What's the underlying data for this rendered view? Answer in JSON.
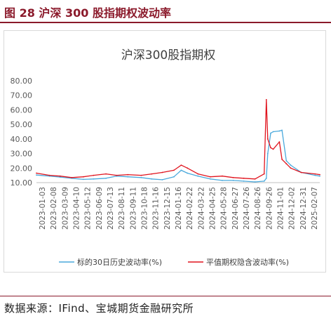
{
  "figure": {
    "title": "图 28 沪深 300 股指期权波动率",
    "source": "数据来源：IFind、宝城期货金融研究所",
    "accent_color": "#8b1a2b"
  },
  "chart_data": {
    "type": "line",
    "title": "沪深300股指期权",
    "xlabel": "",
    "ylabel": "",
    "ylim": [
      10,
      80
    ],
    "yticks": [
      "10.00",
      "20.00",
      "30.00",
      "40.00",
      "50.00",
      "60.00",
      "70.00",
      "80.00"
    ],
    "xticks": [
      "2023-01-03",
      "2023-02-08",
      "2023-03-09",
      "2023-04-10",
      "2023-05-12",
      "2023-06-09",
      "2023-07-13",
      "2023-08-11",
      "2023-09-11",
      "2023-10-18",
      "2023-11-16",
      "2023-12-15",
      "2024-01-16",
      "2024-02-22",
      "2024-03-22",
      "2024-04-25",
      "2024-05-28",
      "2024-06-27",
      "2024-07-26",
      "2024-08-26",
      "2024-09-26",
      "2024-11-01",
      "2024-12-02",
      "2024-12-31",
      "2025-02-07"
    ],
    "x": [
      "2023-01-03",
      "2023-02-08",
      "2023-03-09",
      "2023-04-10",
      "2023-05-12",
      "2023-06-09",
      "2023-07-13",
      "2023-08-11",
      "2023-09-11",
      "2023-10-18",
      "2023-11-16",
      "2023-12-15",
      "2024-01-16",
      "2024-02-05",
      "2024-02-22",
      "2024-03-22",
      "2024-04-25",
      "2024-05-28",
      "2024-06-27",
      "2024-07-26",
      "2024-08-26",
      "2024-09-20",
      "2024-09-26",
      "2024-09-30",
      "2024-10-08",
      "2024-10-15",
      "2024-11-01",
      "2024-11-08",
      "2024-11-20",
      "2024-12-02",
      "2024-12-31",
      "2025-02-07",
      "2025-02-20"
    ],
    "legend_position": "bottom",
    "grid": false,
    "series": [
      {
        "name": "标的30日历史波动率(%)",
        "color": "#4aa9dc",
        "values": [
          15.2,
          14.5,
          13.8,
          13.0,
          12.2,
          12.5,
          13.0,
          14.5,
          14.0,
          13.5,
          12.5,
          12.0,
          14.0,
          18.5,
          16.5,
          14.5,
          12.5,
          11.5,
          11.5,
          11.0,
          10.5,
          11.0,
          13.0,
          30.0,
          44.0,
          45.0,
          45.5,
          46.0,
          25.0,
          22.0,
          17.0,
          15.0,
          14.5
        ]
      },
      {
        "name": "平值期权隐含波动率(%)",
        "color": "#e0141e",
        "values": [
          16.5,
          15.0,
          14.5,
          13.5,
          14.0,
          15.0,
          16.0,
          15.0,
          15.5,
          15.0,
          16.0,
          17.0,
          18.5,
          22.0,
          20.0,
          16.0,
          14.0,
          14.5,
          13.5,
          13.0,
          12.5,
          16.0,
          67.0,
          40.0,
          34.0,
          33.0,
          38.0,
          26.0,
          23.0,
          20.0,
          17.0,
          16.0,
          15.5
        ]
      }
    ]
  }
}
